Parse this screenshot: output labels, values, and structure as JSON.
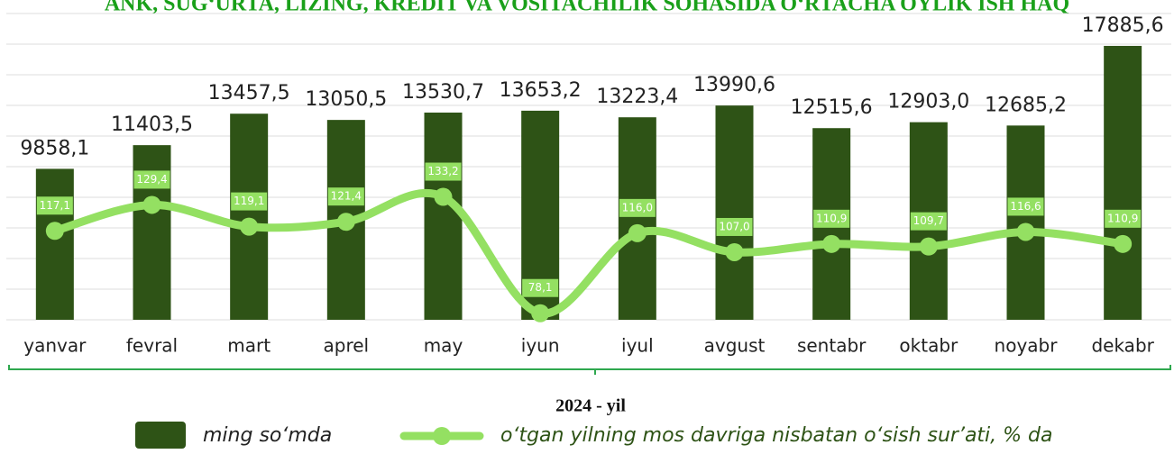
{
  "chart_data": {
    "type": "bar",
    "title": "ANK, SUG‘URTA, LIZING, KREDIT VA VOSITACHILIK SOHASIDA O‘RTACHA OYLIK ISH HAQ",
    "categories": [
      "yanvar",
      "fevral",
      "mart",
      "aprel",
      "may",
      "iyun",
      "iyul",
      "avgust",
      "sentabr",
      "oktabr",
      "noyabr",
      "dekabr"
    ],
    "xlabel": "2024 - yil",
    "series": [
      {
        "name": "ming so‘mda",
        "color": "#2e5316",
        "type": "bar",
        "values": [
          9858.1,
          11403.5,
          13457.5,
          13050.5,
          13530.7,
          13653.2,
          13223.4,
          13990.6,
          12515.6,
          12903.0,
          12685.2,
          17885.6
        ],
        "value_labels": [
          "9858,1",
          "11403,5",
          "13457,5",
          "13050,5",
          "13530,7",
          "13653,2",
          "13223,4",
          "13990,6",
          "12515,6",
          "12903,0",
          "12685,2",
          "17885,6"
        ]
      },
      {
        "name": "o‘tgan yilning mos davriga nisbatan o‘sish sur’ati, % da",
        "color": "#94e062",
        "type": "line",
        "axis": "y2",
        "values": [
          117.1,
          129.4,
          119.1,
          121.4,
          133.2,
          78.1,
          116.0,
          107.0,
          110.9,
          109.7,
          116.6,
          110.9
        ],
        "value_labels": [
          "117,1",
          "129,4",
          "119,1",
          "121,4",
          "133,2",
          "78,1",
          "116,0",
          "107,0",
          "110,9",
          "109,7",
          "116,6",
          "110,9"
        ]
      }
    ],
    "ylim": [
      0,
      20000
    ],
    "yticks": [
      0,
      2000,
      4000,
      6000,
      8000,
      10000,
      12000,
      14000,
      16000,
      18000,
      20000
    ],
    "y2lim": [
      75,
      220
    ],
    "grid": true
  }
}
